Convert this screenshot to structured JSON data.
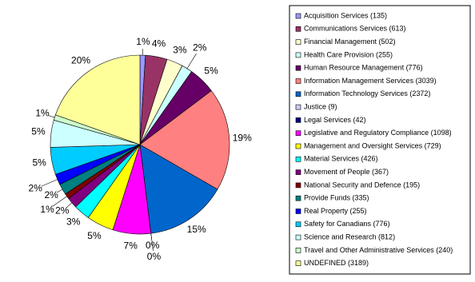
{
  "chart_data": {
    "type": "pie",
    "categories": [
      "Acquisition Services (135)",
      "Communications Services (613)",
      "Financial Management (502)",
      "Health Care Provision (255)",
      "Human Resource Management (776)",
      "Information Management Services (3039)",
      "Information Technology Services (2372)",
      "Justice (9)",
      "Legal Services (42)",
      "Legislative and Regulatory Compliance (1098)",
      "Management and Oversight Services (729)",
      "Material Services (426)",
      "Movement of People (367)",
      "National Security and Defence (195)",
      "Provide Funds (335)",
      "Real Property (255)",
      "Safety for Canadians (776)",
      "Science and Research (812)",
      "Travel and Other Administrative Services (240)",
      "UNDEFINED (3189)"
    ],
    "values": [
      1,
      4,
      3,
      2,
      5,
      19,
      15,
      0,
      0,
      7,
      5,
      3,
      2,
      1,
      2,
      2,
      5,
      5,
      1,
      20
    ],
    "value_labels": [
      "1%",
      "4%",
      "3%",
      "2%",
      "5%",
      "19%",
      "15%",
      "0%",
      "0%",
      "7%",
      "5%",
      "3%",
      "2%",
      "1%",
      "2%",
      "2%",
      "5%",
      "5%",
      "1%",
      "20%"
    ],
    "colors": [
      "#9999FF",
      "#993366",
      "#FFFFCC",
      "#CCFFFF",
      "#660066",
      "#FF8080",
      "#0066CC",
      "#CCCCFF",
      "#000080",
      "#FF00FF",
      "#FFFF00",
      "#00FFFF",
      "#800080",
      "#800000",
      "#008080",
      "#0000FF",
      "#00CCFF",
      "#CCFFFF",
      "#CCFFCC",
      "#FFFF99"
    ],
    "legend": "right"
  }
}
